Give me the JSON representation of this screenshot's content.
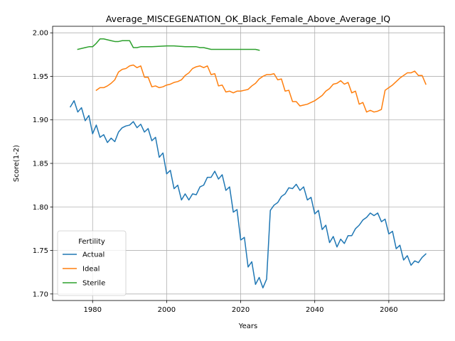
{
  "chart_data": {
    "type": "line",
    "title": "Average_MISCEGENATION_OK_Black_Female_Above_Average_IQ",
    "xlabel": "Years",
    "ylabel": "Score(1-2)",
    "xlim": [
      1969.2,
      2075.0
    ],
    "ylim": [
      1.6925,
      2.0075
    ],
    "xticks": [
      1980,
      2000,
      2020,
      2040,
      2060
    ],
    "yticks": [
      1.7,
      1.75,
      1.8,
      1.85,
      1.9,
      1.95,
      2.0
    ],
    "ytick_labels": [
      "1.70",
      "1.75",
      "1.80",
      "1.85",
      "1.90",
      "1.95",
      "2.00"
    ],
    "grid": true,
    "legend": {
      "title": "Fertility",
      "position": "lower-left"
    },
    "series": [
      {
        "name": "Actual",
        "color": "#1f77b4",
        "x": [
          1974,
          1975,
          1976,
          1977,
          1978,
          1979,
          1980,
          1981,
          1982,
          1983,
          1984,
          1985,
          1986,
          1987,
          1988,
          1989,
          1990,
          1991,
          1992,
          1993,
          1994,
          1995,
          1996,
          1997,
          1998,
          1999,
          2000,
          2001,
          2002,
          2003,
          2004,
          2005,
          2006,
          2007,
          2008,
          2009,
          2010,
          2011,
          2012,
          2013,
          2014,
          2015,
          2016,
          2017,
          2018,
          2019,
          2020,
          2021,
          2022,
          2023,
          2024,
          2025,
          2026,
          2027,
          2028,
          2029,
          2030,
          2031,
          2032,
          2033,
          2034,
          2035,
          2036,
          2037,
          2038,
          2039,
          2040,
          2041,
          2042,
          2043,
          2044,
          2045,
          2046,
          2047,
          2048,
          2049,
          2050,
          2051,
          2052,
          2053,
          2054,
          2055,
          2056,
          2057,
          2058,
          2059,
          2060,
          2061,
          2062,
          2063,
          2064,
          2065,
          2066,
          2067,
          2068,
          2069,
          2070
        ],
        "values": [
          1.915,
          1.922,
          1.909,
          1.914,
          1.899,
          1.905,
          1.884,
          1.894,
          1.88,
          1.883,
          1.874,
          1.879,
          1.875,
          1.886,
          1.891,
          1.893,
          1.894,
          1.898,
          1.891,
          1.895,
          1.886,
          1.89,
          1.876,
          1.88,
          1.857,
          1.862,
          1.838,
          1.842,
          1.821,
          1.825,
          1.808,
          1.815,
          1.808,
          1.815,
          1.814,
          1.823,
          1.825,
          1.834,
          1.834,
          1.841,
          1.832,
          1.837,
          1.819,
          1.823,
          1.794,
          1.797,
          1.762,
          1.765,
          1.731,
          1.737,
          1.711,
          1.719,
          1.707,
          1.717,
          1.796,
          1.802,
          1.805,
          1.812,
          1.815,
          1.822,
          1.821,
          1.826,
          1.819,
          1.823,
          1.808,
          1.811,
          1.792,
          1.796,
          1.774,
          1.779,
          1.759,
          1.766,
          1.754,
          1.763,
          1.758,
          1.767,
          1.767,
          1.775,
          1.779,
          1.785,
          1.788,
          1.793,
          1.79,
          1.793,
          1.783,
          1.786,
          1.769,
          1.772,
          1.752,
          1.756,
          1.739,
          1.744,
          1.733,
          1.738,
          1.736,
          1.742,
          1.746
        ]
      },
      {
        "name": "Ideal",
        "color": "#ff7f0e",
        "x": [
          1981,
          1982,
          1983,
          1984,
          1985,
          1986,
          1987,
          1988,
          1989,
          1990,
          1991,
          1992,
          1993,
          1994,
          1995,
          1996,
          1997,
          1998,
          1999,
          2000,
          2001,
          2002,
          2003,
          2004,
          2005,
          2006,
          2007,
          2008,
          2009,
          2010,
          2011,
          2012,
          2013,
          2014,
          2015,
          2016,
          2017,
          2018,
          2019,
          2020,
          2021,
          2022,
          2023,
          2024,
          2025,
          2026,
          2027,
          2028,
          2029,
          2030,
          2031,
          2032,
          2033,
          2034,
          2035,
          2036,
          2037,
          2038,
          2039,
          2040,
          2041,
          2042,
          2043,
          2044,
          2045,
          2046,
          2047,
          2048,
          2049,
          2050,
          2051,
          2052,
          2053,
          2054,
          2055,
          2056,
          2057,
          2058,
          2059,
          2060,
          2061,
          2062,
          2063,
          2064,
          2065,
          2066,
          2067,
          2068,
          2069,
          2070
        ],
        "values": [
          1.934,
          1.937,
          1.937,
          1.939,
          1.942,
          1.946,
          1.955,
          1.958,
          1.959,
          1.962,
          1.963,
          1.96,
          1.962,
          1.949,
          1.949,
          1.938,
          1.939,
          1.937,
          1.938,
          1.94,
          1.941,
          1.943,
          1.944,
          1.946,
          1.951,
          1.954,
          1.959,
          1.961,
          1.962,
          1.96,
          1.962,
          1.952,
          1.953,
          1.939,
          1.94,
          1.932,
          1.933,
          1.931,
          1.933,
          1.933,
          1.934,
          1.935,
          1.939,
          1.942,
          1.947,
          1.95,
          1.952,
          1.952,
          1.953,
          1.946,
          1.947,
          1.933,
          1.934,
          1.921,
          1.921,
          1.916,
          1.917,
          1.918,
          1.92,
          1.922,
          1.925,
          1.928,
          1.933,
          1.936,
          1.941,
          1.942,
          1.945,
          1.941,
          1.943,
          1.931,
          1.933,
          1.918,
          1.92,
          1.909,
          1.911,
          1.909,
          1.91,
          1.912,
          1.934,
          1.937,
          1.94,
          1.944,
          1.948,
          1.951,
          1.954,
          1.954,
          1.956,
          1.951,
          1.951,
          1.941
        ]
      },
      {
        "name": "Sterile",
        "color": "#2ca02c",
        "x": [
          1976,
          1978,
          1979,
          1980,
          1981,
          1982,
          1983,
          1984,
          1985,
          1986,
          1987,
          1988,
          1989,
          1990,
          1991,
          1992,
          1993,
          1994,
          1995,
          1996,
          2000,
          2002,
          2005,
          2008,
          2009,
          2010,
          2011,
          2012,
          2013,
          2014,
          2016,
          2018,
          2020,
          2022,
          2024,
          2025
        ],
        "values": [
          1.981,
          1.983,
          1.984,
          1.984,
          1.988,
          1.993,
          1.993,
          1.992,
          1.991,
          1.99,
          1.99,
          1.991,
          1.991,
          1.991,
          1.983,
          1.983,
          1.984,
          1.984,
          1.984,
          1.984,
          1.985,
          1.985,
          1.984,
          1.984,
          1.983,
          1.983,
          1.982,
          1.981,
          1.981,
          1.981,
          1.981,
          1.981,
          1.981,
          1.981,
          1.981,
          1.98
        ]
      }
    ]
  }
}
